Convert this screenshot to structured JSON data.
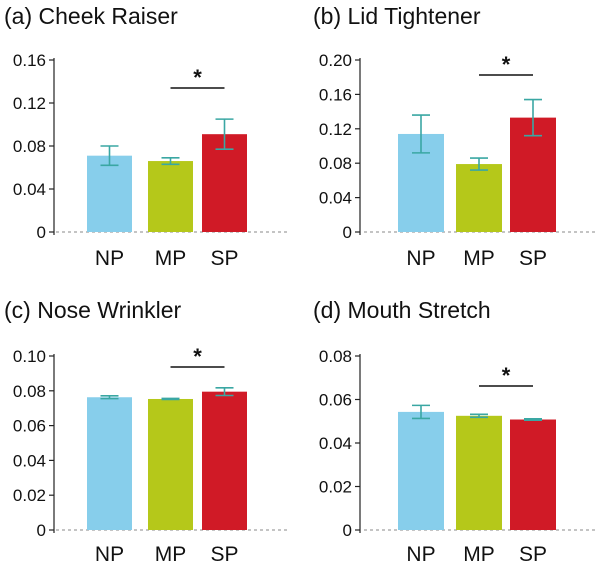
{
  "chart_data": [
    {
      "type": "bar",
      "title": "(a) Cheek Raiser",
      "categories": [
        "NP",
        "MP",
        "SP"
      ],
      "values": [
        0.071,
        0.066,
        0.091
      ],
      "errors": [
        0.009,
        0.003,
        0.014
      ],
      "colors": [
        "#87ceeb",
        "#b5c81a",
        "#d01a26"
      ],
      "ylim": [
        0,
        0.16
      ],
      "yticks": [
        0,
        0.04,
        0.08,
        0.12,
        0.16
      ],
      "ytick_labels": [
        "0",
        "0.04",
        "0.08",
        "0.12",
        "0.16"
      ],
      "significance": {
        "from": 1,
        "to": 2,
        "label": "*"
      }
    },
    {
      "type": "bar",
      "title": "(b) Lid Tightener",
      "categories": [
        "NP",
        "MP",
        "SP"
      ],
      "values": [
        0.114,
        0.079,
        0.133
      ],
      "errors": [
        0.022,
        0.007,
        0.021
      ],
      "colors": [
        "#87ceeb",
        "#b5c81a",
        "#d01a26"
      ],
      "ylim": [
        0,
        0.2
      ],
      "yticks": [
        0,
        0.04,
        0.08,
        0.12,
        0.16,
        0.2
      ],
      "ytick_labels": [
        "0",
        "0.04",
        "0.08",
        "0.12",
        "0.16",
        "0.20"
      ],
      "significance": {
        "from": 1,
        "to": 2,
        "label": "*"
      }
    },
    {
      "type": "bar",
      "title": "(c) Nose Wrinkler",
      "categories": [
        "NP",
        "MP",
        "SP"
      ],
      "values": [
        0.0763,
        0.0753,
        0.0795
      ],
      "errors": [
        0.0008,
        0.0003,
        0.0022
      ],
      "colors": [
        "#87ceeb",
        "#b5c81a",
        "#d01a26"
      ],
      "ylim": [
        0,
        0.1
      ],
      "yticks": [
        0,
        0.02,
        0.04,
        0.06,
        0.08,
        0.1
      ],
      "ytick_labels": [
        "0",
        "0.02",
        "0.04",
        "0.06",
        "0.08",
        "0.10"
      ],
      "significance": {
        "from": 1,
        "to": 2,
        "label": "*"
      }
    },
    {
      "type": "bar",
      "title": "(d) Mouth Stretch",
      "categories": [
        "NP",
        "MP",
        "SP"
      ],
      "values": [
        0.0543,
        0.0525,
        0.0508
      ],
      "errors": [
        0.003,
        0.0007,
        0.0003
      ],
      "colors": [
        "#87ceeb",
        "#b5c81a",
        "#d01a26"
      ],
      "ylim": [
        0,
        0.08
      ],
      "yticks": [
        0,
        0.02,
        0.04,
        0.06,
        0.08
      ],
      "ytick_labels": [
        "0",
        "0.02",
        "0.04",
        "0.06",
        "0.08"
      ],
      "significance": {
        "from": 1,
        "to": 2,
        "label": "*"
      }
    }
  ]
}
